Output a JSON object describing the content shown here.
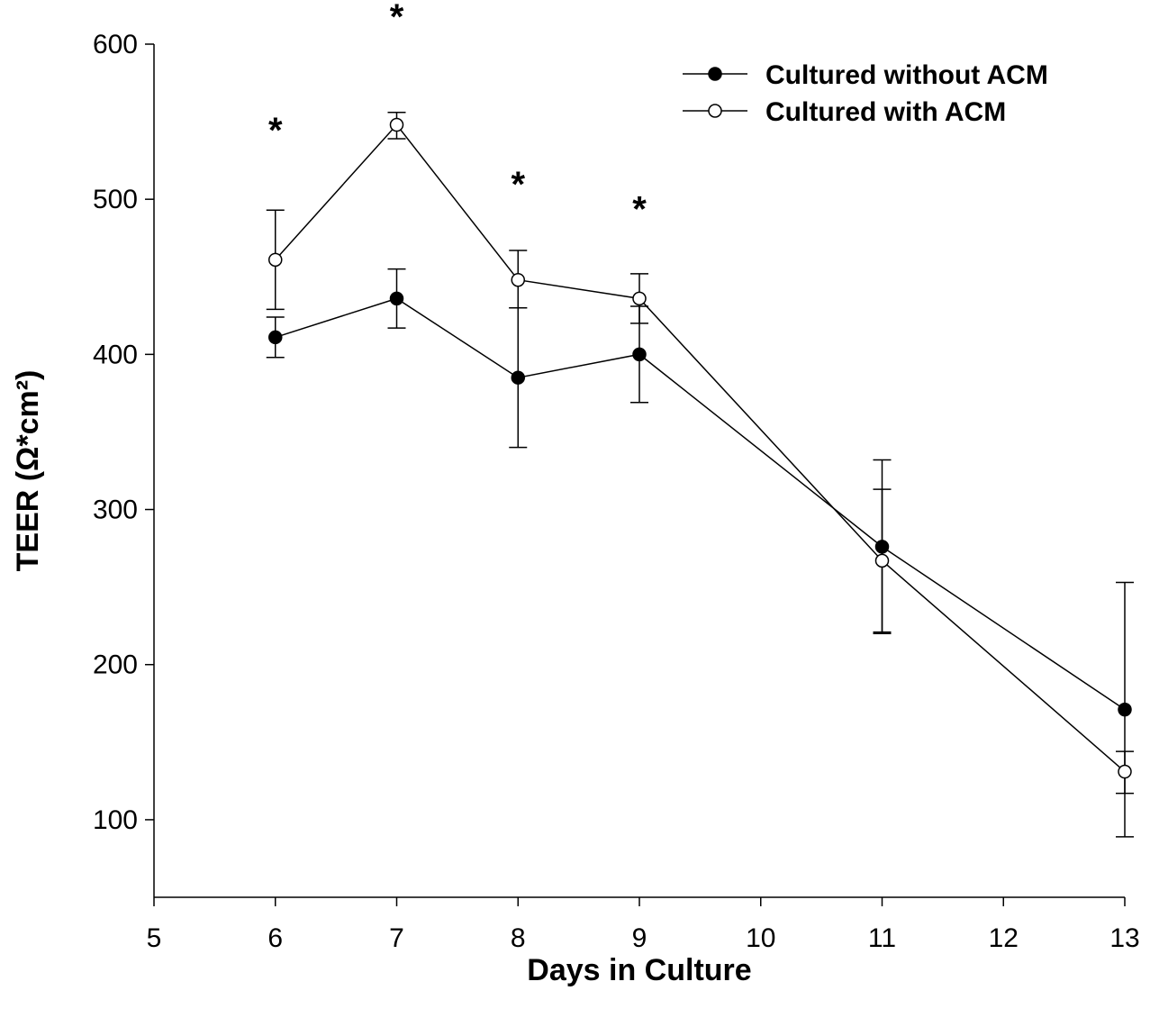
{
  "chart_data": {
    "type": "line",
    "title": "",
    "xlabel": "Days in Culture",
    "ylabel": "TEER (Ω*cm²)",
    "xlim": [
      5,
      13
    ],
    "ylim": [
      50,
      600
    ],
    "x_ticks": [
      5,
      6,
      7,
      8,
      9,
      10,
      11,
      12,
      13
    ],
    "y_ticks": [
      100,
      200,
      300,
      400,
      500,
      600
    ],
    "grid": false,
    "legend_position": "top-right",
    "series": [
      {
        "name": "Cultured without ACM",
        "marker": "filled-circle",
        "color": "#000000",
        "points": [
          {
            "x": 6,
            "y": 411,
            "err_low": 13,
            "err_high": 13
          },
          {
            "x": 7,
            "y": 436,
            "err_low": 19,
            "err_high": 19
          },
          {
            "x": 8,
            "y": 385,
            "err_low": 45,
            "err_high": 45
          },
          {
            "x": 9,
            "y": 400,
            "err_low": 31,
            "err_high": 31
          },
          {
            "x": 11,
            "y": 276,
            "err_low": 56,
            "err_high": 56
          },
          {
            "x": 13,
            "y": 171,
            "err_low": 54,
            "err_high": 82
          }
        ]
      },
      {
        "name": "Cultured with ACM",
        "marker": "open-circle",
        "color": "#000000",
        "points": [
          {
            "x": 6,
            "y": 461,
            "err_low": 32,
            "err_high": 32
          },
          {
            "x": 7,
            "y": 548,
            "err_low": 9,
            "err_high": 8
          },
          {
            "x": 8,
            "y": 448,
            "err_low": 18,
            "err_high": 19
          },
          {
            "x": 9,
            "y": 436,
            "err_low": 16,
            "err_high": 16
          },
          {
            "x": 11,
            "y": 267,
            "err_low": 46,
            "err_high": 46
          },
          {
            "x": 13,
            "y": 131,
            "err_low": 42,
            "err_high": 13
          }
        ]
      }
    ],
    "annotations": [
      {
        "text": "*",
        "x": 6,
        "y": 553
      },
      {
        "text": "*",
        "x": 7,
        "y": 626
      },
      {
        "text": "*",
        "x": 8,
        "y": 518
      },
      {
        "text": "*",
        "x": 9,
        "y": 502
      }
    ]
  }
}
